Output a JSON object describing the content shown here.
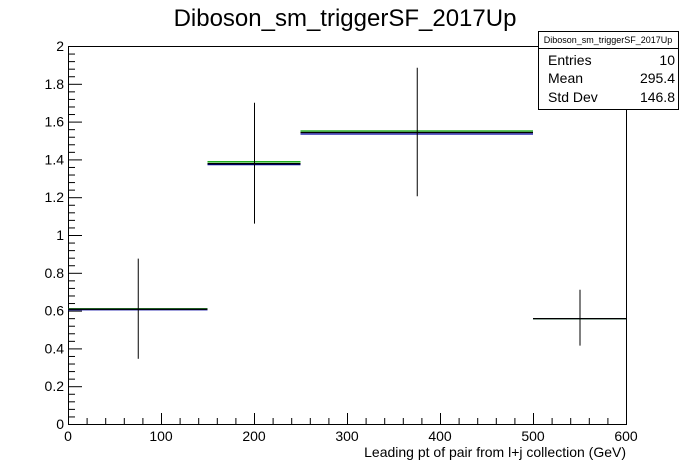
{
  "chart_data": {
    "type": "histogram",
    "title": "Diboson_sm_triggerSF_2017Up",
    "xlabel": "Leading pt of pair from l+j collection (GeV)",
    "ylabel": "",
    "xlim": [
      0,
      600
    ],
    "ylim": [
      0,
      2.0
    ],
    "x_ticks": [
      "0",
      "100",
      "200",
      "300",
      "400",
      "500",
      "600"
    ],
    "y_ticks": [
      "0",
      "0.2",
      "0.4",
      "0.6",
      "0.8",
      "1",
      "1.2",
      "1.4",
      "1.6",
      "1.8",
      "2"
    ],
    "grid": false,
    "legend": "none",
    "bins": [
      {
        "xlow": 0,
        "xhigh": 150,
        "x": 75,
        "y": 0.61,
        "yerr_low": 0.345,
        "yerr_high": 0.875
      },
      {
        "xlow": 150,
        "xhigh": 250,
        "x": 200,
        "y": 1.38,
        "yerr_low": 1.06,
        "yerr_high": 1.7
      },
      {
        "xlow": 250,
        "xhigh": 500,
        "x": 375,
        "y": 1.545,
        "yerr_low": 1.205,
        "yerr_high": 1.885
      },
      {
        "xlow": 500,
        "xhigh": 600,
        "x": 550,
        "y": 0.56,
        "yerr_low": 0.415,
        "yerr_high": 0.71
      }
    ],
    "series": [
      {
        "color": "#000000",
        "values": [
          0.61,
          1.38,
          1.545,
          0.56
        ]
      },
      {
        "color": "#00a000",
        "values": [
          0.612,
          1.39,
          1.553,
          0.56
        ]
      },
      {
        "color": "#0000a0",
        "values": [
          0.607,
          1.375,
          1.537,
          0.56
        ]
      }
    ],
    "stats_box": {
      "title": "Diboson_sm_triggerSF_2017Up",
      "entries_label": "Entries",
      "entries_value": "10",
      "mean_label": "Mean",
      "mean_value": "295.4",
      "stddev_label": "Std Dev",
      "stddev_value": "146.8",
      "placement": "top-right"
    }
  }
}
